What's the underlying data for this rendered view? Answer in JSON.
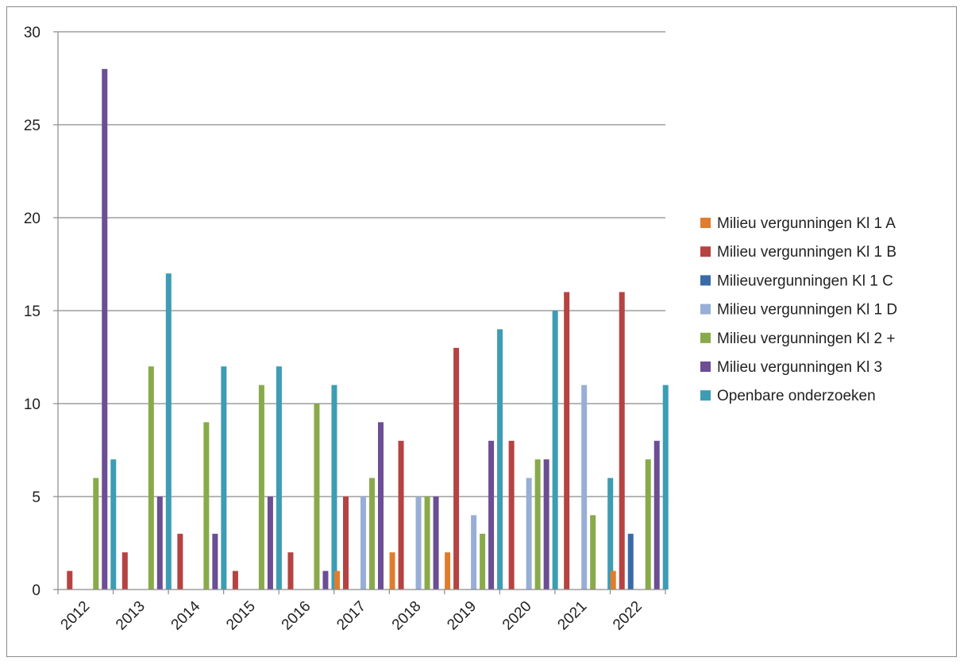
{
  "chart_data": {
    "type": "bar",
    "title": "",
    "xlabel": "",
    "ylabel": "",
    "ylim": [
      0,
      30
    ],
    "yticks": [
      0,
      5,
      10,
      15,
      20,
      25,
      30
    ],
    "grid": true,
    "legend_position": "right",
    "categories": [
      "2012",
      "2013",
      "2014",
      "2015",
      "2016",
      "2017",
      "2018",
      "2019",
      "2020",
      "2021",
      "2022"
    ],
    "series": [
      {
        "name": "Milieu vergunningen Kl 1 A",
        "color": "#e07d2d",
        "values": [
          0,
          0,
          0,
          0,
          0,
          1,
          2,
          2,
          0,
          0,
          1
        ]
      },
      {
        "name": "Milieu vergunningen Kl 1 B",
        "color": "#b54341",
        "values": [
          1,
          2,
          3,
          1,
          2,
          5,
          8,
          13,
          8,
          16,
          16
        ]
      },
      {
        "name": "Milieuvergunningen Kl 1 C",
        "color": "#3a6aaa",
        "values": [
          0,
          0,
          0,
          0,
          0,
          0,
          0,
          0,
          0,
          0,
          3
        ]
      },
      {
        "name": "Milieu vergunningen Kl 1 D",
        "color": "#98aed6",
        "values": [
          0,
          0,
          0,
          0,
          0,
          5,
          5,
          4,
          6,
          11,
          0
        ]
      },
      {
        "name": "Milieu vergunningen Kl 2 +",
        "color": "#89aa4a",
        "values": [
          6,
          12,
          9,
          11,
          10,
          6,
          5,
          3,
          7,
          4,
          7
        ]
      },
      {
        "name": "Milieu vergunningen Kl 3",
        "color": "#6b4e94",
        "values": [
          28,
          5,
          3,
          5,
          1,
          9,
          5,
          8,
          7,
          0,
          8
        ]
      },
      {
        "name": "Openbare onderzoeken",
        "color": "#3c9db4",
        "values": [
          7,
          17,
          12,
          12,
          11,
          0,
          0,
          14,
          15,
          6,
          11
        ]
      }
    ]
  }
}
